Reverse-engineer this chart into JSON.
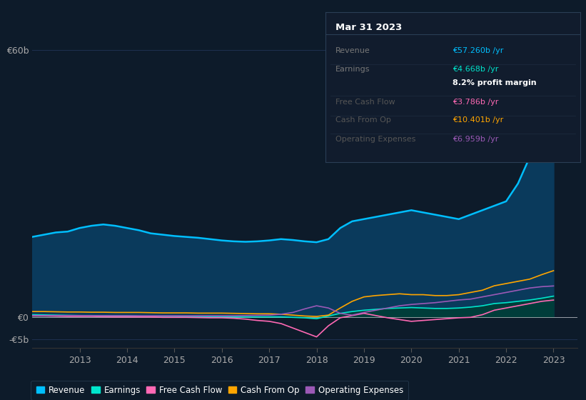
{
  "bg_color": "#0d1b2a",
  "plot_bg_color": "#0d1b2a",
  "grid_color": "#1e3050",
  "years": [
    2012.0,
    2012.25,
    2012.5,
    2012.75,
    2013.0,
    2013.25,
    2013.5,
    2013.75,
    2014.0,
    2014.25,
    2014.5,
    2014.75,
    2015.0,
    2015.25,
    2015.5,
    2015.75,
    2016.0,
    2016.25,
    2016.5,
    2016.75,
    2017.0,
    2017.25,
    2017.5,
    2017.75,
    2018.0,
    2018.25,
    2018.5,
    2018.75,
    2019.0,
    2019.25,
    2019.5,
    2019.75,
    2020.0,
    2020.25,
    2020.5,
    2020.75,
    2021.0,
    2021.25,
    2021.5,
    2021.75,
    2022.0,
    2022.25,
    2022.5,
    2022.75,
    2023.0
  ],
  "revenue": [
    18.0,
    18.5,
    19.0,
    19.2,
    20.0,
    20.5,
    20.8,
    20.5,
    20.0,
    19.5,
    18.8,
    18.5,
    18.2,
    18.0,
    17.8,
    17.5,
    17.2,
    17.0,
    16.9,
    17.0,
    17.2,
    17.5,
    17.3,
    17.0,
    16.8,
    17.5,
    20.0,
    21.5,
    22.0,
    22.5,
    23.0,
    23.5,
    24.0,
    23.5,
    23.0,
    22.5,
    22.0,
    23.0,
    24.0,
    25.0,
    26.0,
    30.0,
    36.0,
    46.0,
    57.26
  ],
  "earnings": [
    0.5,
    0.45,
    0.4,
    0.35,
    0.3,
    0.3,
    0.25,
    0.2,
    0.2,
    0.15,
    0.1,
    0.1,
    0.1,
    0.05,
    0.05,
    0.05,
    0.0,
    0.0,
    0.0,
    0.0,
    0.0,
    0.0,
    -0.1,
    -0.2,
    -0.4,
    0.2,
    0.8,
    1.2,
    1.5,
    1.7,
    1.9,
    2.0,
    2.1,
    2.0,
    1.9,
    1.9,
    2.0,
    2.2,
    2.5,
    3.0,
    3.2,
    3.5,
    3.8,
    4.2,
    4.668
  ],
  "free_cash_flow": [
    0.2,
    0.2,
    0.15,
    0.1,
    0.1,
    0.1,
    0.05,
    0.0,
    0.0,
    0.0,
    0.0,
    -0.1,
    -0.1,
    -0.1,
    -0.15,
    -0.2,
    -0.2,
    -0.3,
    -0.5,
    -0.8,
    -1.0,
    -1.5,
    -2.5,
    -3.5,
    -4.5,
    -2.0,
    -0.2,
    0.3,
    0.8,
    0.3,
    -0.2,
    -0.6,
    -1.0,
    -0.8,
    -0.6,
    -0.4,
    -0.2,
    -0.1,
    0.5,
    1.5,
    2.0,
    2.5,
    3.0,
    3.5,
    3.786
  ],
  "cash_from_op": [
    1.2,
    1.2,
    1.15,
    1.1,
    1.1,
    1.05,
    1.05,
    1.0,
    1.0,
    1.0,
    0.95,
    0.9,
    0.9,
    0.9,
    0.85,
    0.85,
    0.85,
    0.8,
    0.75,
    0.7,
    0.7,
    0.6,
    0.4,
    0.2,
    0.1,
    0.4,
    2.0,
    3.5,
    4.5,
    4.8,
    5.0,
    5.2,
    5.0,
    5.0,
    4.8,
    4.8,
    5.0,
    5.5,
    6.0,
    7.0,
    7.5,
    8.0,
    8.5,
    9.5,
    10.401
  ],
  "operating_expenses": [
    0.3,
    0.3,
    0.3,
    0.3,
    0.3,
    0.28,
    0.28,
    0.28,
    0.28,
    0.25,
    0.25,
    0.25,
    0.25,
    0.25,
    0.25,
    0.25,
    0.25,
    0.25,
    0.3,
    0.35,
    0.4,
    0.6,
    1.0,
    1.8,
    2.5,
    2.0,
    0.8,
    0.4,
    1.0,
    1.5,
    2.0,
    2.5,
    2.8,
    3.0,
    3.2,
    3.5,
    3.8,
    4.0,
    4.5,
    5.0,
    5.5,
    6.0,
    6.5,
    6.8,
    6.959
  ],
  "revenue_color": "#00bfff",
  "earnings_color": "#00e5cc",
  "free_cash_flow_color": "#ff69b4",
  "cash_from_op_color": "#ffa500",
  "operating_expenses_color": "#9b59b6",
  "revenue_fill_color": "#0a3a5c",
  "earnings_fill_color": "#003d3a",
  "ylim": [
    -7,
    65
  ],
  "xlim": [
    2012.0,
    2023.5
  ],
  "ytick_positions": [
    -5,
    0,
    60
  ],
  "ytick_labels": [
    "-€5b",
    "€0",
    "€60b"
  ],
  "xtick_years": [
    2013,
    2014,
    2015,
    2016,
    2017,
    2018,
    2019,
    2020,
    2021,
    2022,
    2023
  ],
  "tooltip_title": "Mar 31 2023",
  "tooltip_rows": [
    {
      "label": "Revenue",
      "value": "€57.260b /yr",
      "label_color": "#777777",
      "value_color": "#00bfff",
      "divider": true
    },
    {
      "label": "Earnings",
      "value": "€4.668b /yr",
      "label_color": "#777777",
      "value_color": "#00e5cc",
      "divider": false
    },
    {
      "label": "",
      "value": "8.2% profit margin",
      "label_color": "#777777",
      "value_color": "#ffffff",
      "divider": true,
      "bold": true
    },
    {
      "label": "Free Cash Flow",
      "value": "€3.786b /yr",
      "label_color": "#555555",
      "value_color": "#ff69b4",
      "divider": true
    },
    {
      "label": "Cash From Op",
      "value": "€10.401b /yr",
      "label_color": "#555555",
      "value_color": "#ffa500",
      "divider": true
    },
    {
      "label": "Operating Expenses",
      "value": "€6.959b /yr",
      "label_color": "#555555",
      "value_color": "#9b59b6",
      "divider": false
    }
  ],
  "legend_items": [
    {
      "label": "Revenue",
      "color": "#00bfff"
    },
    {
      "label": "Earnings",
      "color": "#00e5cc"
    },
    {
      "label": "Free Cash Flow",
      "color": "#ff69b4"
    },
    {
      "label": "Cash From Op",
      "color": "#ffa500"
    },
    {
      "label": "Operating Expenses",
      "color": "#9b59b6"
    }
  ]
}
